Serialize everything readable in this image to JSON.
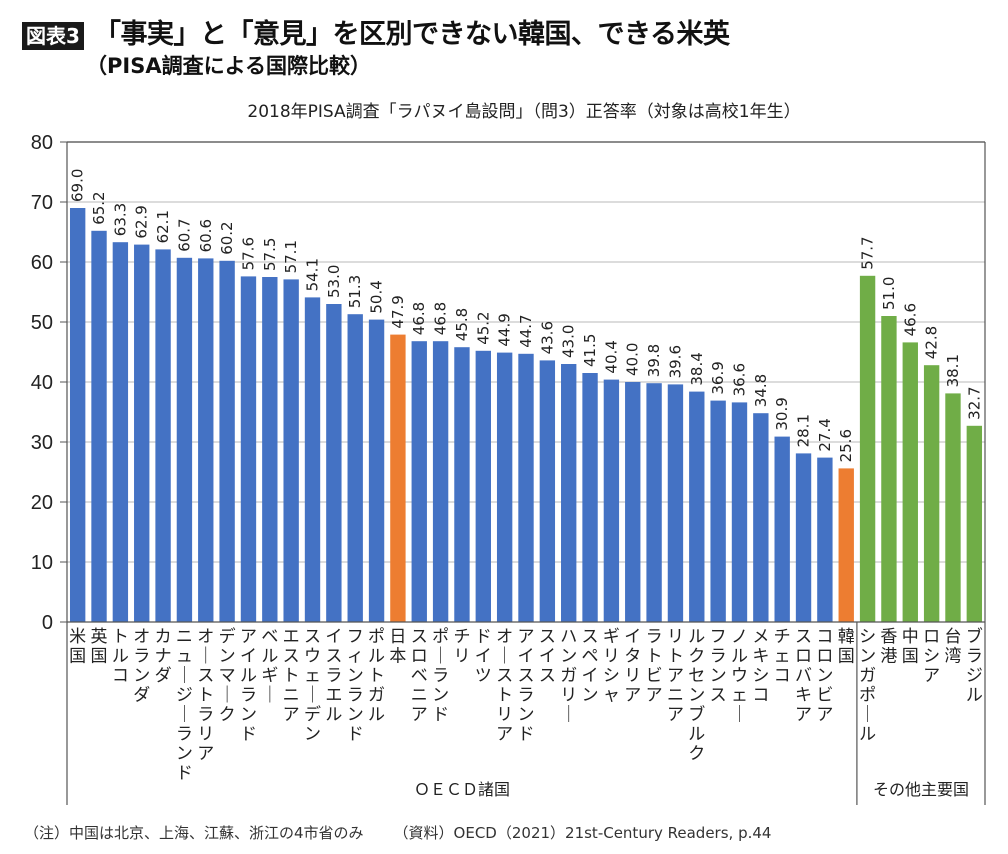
{
  "header": {
    "badge": "図表3",
    "title": "「事実」と「意見」を区別できない韓国、できる米英",
    "subtitle": "（PISA調査による国際比較）"
  },
  "colors": {
    "oecd": "#4472C4",
    "highlight": "#ED7D31",
    "other": "#70AD47",
    "grid": "#d0d0d0",
    "axis": "#555555"
  },
  "chart_data": {
    "type": "bar",
    "title": "2018年PISA調査「ラパヌイ島設問」（問3）正答率（対象は高校1年生）",
    "xlabel": "",
    "ylabel": "",
    "ylim": [
      0,
      80
    ],
    "yticks": [
      0,
      10,
      20,
      30,
      40,
      50,
      60,
      70,
      80
    ],
    "grid": true,
    "data_labels": true,
    "groups": [
      {
        "name": "ＯＥＣＤ諸国",
        "start": 0,
        "end": 36
      },
      {
        "name": "その他主要国",
        "start": 37,
        "end": 42
      }
    ],
    "categories": [
      "米国",
      "英国",
      "トルコ",
      "オランダ",
      "カナダ",
      "ニュージーランド",
      "オーストラリア",
      "デンマーク",
      "アイルランド",
      "ベルギー",
      "エストニア",
      "スウェーデン",
      "イスラエル",
      "フィンランド",
      "ポルトガル",
      "日本",
      "スロベニア",
      "ポーランド",
      "チリ",
      "ドイツ",
      "オーストリア",
      "アイスランド",
      "スイス",
      "ハンガリー",
      "スペイン",
      "ギリシャ",
      "イタリア",
      "ラトビア",
      "リトアニア",
      "ルクセンブルク",
      "フランス",
      "ノルウェー",
      "メキシコ",
      "チェコ",
      "スロバキア",
      "コロンビア",
      "韓国",
      "シンガポール",
      "香港",
      "中国",
      "ロシア",
      "台湾",
      "ブラジル"
    ],
    "values": [
      69.0,
      65.2,
      63.3,
      62.9,
      62.1,
      60.7,
      60.6,
      60.2,
      57.6,
      57.5,
      57.1,
      54.1,
      53.0,
      51.3,
      50.4,
      47.9,
      46.8,
      46.8,
      45.8,
      45.2,
      44.9,
      44.7,
      43.6,
      43.0,
      41.5,
      40.4,
      40.0,
      39.8,
      39.6,
      38.4,
      36.9,
      36.6,
      34.8,
      30.9,
      28.1,
      27.4,
      25.6,
      57.7,
      51.0,
      46.6,
      42.8,
      38.1,
      32.7
    ],
    "value_labels": [
      "69.0",
      "65.2",
      "63.3",
      "62.9",
      "62.1",
      "60.7",
      "60.6",
      "60.2",
      "57.6",
      "57.5",
      "57.1",
      "54.1",
      "53.0",
      "51.3",
      "50.4",
      "47.9",
      "46.8",
      "46.8",
      "45.8",
      "45.2",
      "44.9",
      "44.7",
      "43.6",
      "43.0",
      "41.5",
      "40.4",
      "40.0",
      "39.8",
      "39.6",
      "38.4",
      "36.9",
      "36.6",
      "34.8",
      "30.9",
      "28.1",
      "27.4",
      "25.6",
      "57.7",
      "51.0",
      "46.6",
      "42.8",
      "38.1",
      "32.7"
    ],
    "series_color_key": [
      "oecd",
      "oecd",
      "oecd",
      "oecd",
      "oecd",
      "oecd",
      "oecd",
      "oecd",
      "oecd",
      "oecd",
      "oecd",
      "oecd",
      "oecd",
      "oecd",
      "oecd",
      "highlight",
      "oecd",
      "oecd",
      "oecd",
      "oecd",
      "oecd",
      "oecd",
      "oecd",
      "oecd",
      "oecd",
      "oecd",
      "oecd",
      "oecd",
      "oecd",
      "oecd",
      "oecd",
      "oecd",
      "oecd",
      "oecd",
      "oecd",
      "oecd",
      "highlight",
      "other",
      "other",
      "other",
      "other",
      "other",
      "other"
    ]
  },
  "footnote": {
    "note": "（注）中国は北京、上海、江蘇、浙江の4市省のみ",
    "source": "（資料）OECD（2021）21st-Century Readers, p.44"
  }
}
